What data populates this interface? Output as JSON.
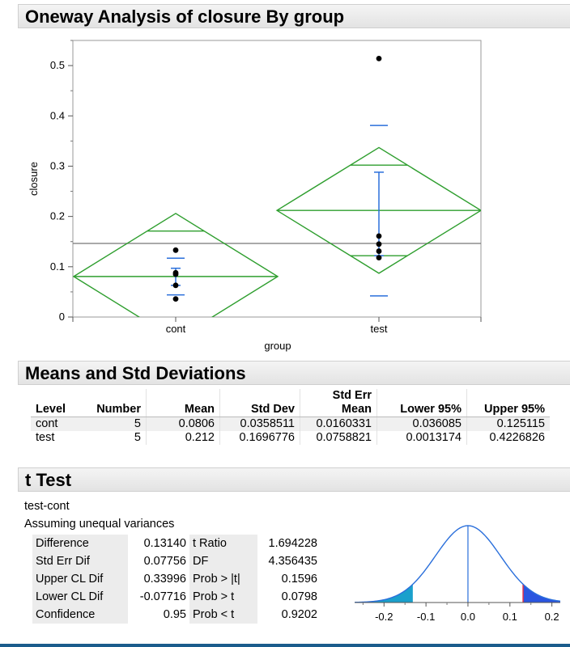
{
  "headers": {
    "oneway": "Oneway Analysis of closure By group",
    "means": "Means and Std Deviations",
    "ttest": "t Test"
  },
  "colors": {
    "diamond": "#2e9e2e",
    "errorbar": "#2a6fdb",
    "grandmean": "#777777",
    "points": "#000000"
  },
  "chart_data": {
    "type": "scatter",
    "xlabel": "group",
    "ylabel": "closure",
    "categories": [
      "cont",
      "test"
    ],
    "ylim": [
      0,
      0.55
    ],
    "yticks": [
      "0",
      "0.1",
      "0.2",
      "0.3",
      "0.4",
      "0.5"
    ],
    "grand_mean": 0.1463,
    "points": {
      "cont": [
        0.133,
        0.088,
        0.085,
        0.063,
        0.036
      ],
      "test": [
        0.514,
        0.161,
        0.145,
        0.131,
        0.118
      ]
    },
    "means": {
      "cont": 0.0806,
      "test": 0.212
    },
    "diamond_top": {
      "cont": 0.206,
      "test": 0.337
    },
    "diamond_bottom": {
      "cont": -0.045,
      "test": 0.087
    },
    "overlap_marks": {
      "cont": [
        0.171,
        -0.01
      ],
      "test": [
        0.302,
        0.122
      ]
    },
    "std_dev_bars": {
      "cont": [
        0.044,
        0.117
      ],
      "test": [
        0.042,
        0.381
      ]
    },
    "ci_bars": {
      "cont": [
        0.063,
        0.097
      ],
      "test": [
        0.122,
        0.288
      ]
    }
  },
  "means_table": {
    "columns": [
      "Level",
      "Number",
      "Mean",
      "Std Dev",
      "Std Err",
      "Mean",
      "Lower 95%",
      "Upper 95%"
    ],
    "rows": [
      [
        "cont",
        "5",
        "0.0806",
        "0.0358511",
        "0.0160331",
        "0.036085",
        "0.125115"
      ],
      [
        "test",
        "5",
        "0.212",
        "0.1696776",
        "0.0758821",
        "0.0013174",
        "0.4226826"
      ]
    ]
  },
  "ttest": {
    "comparison": "test-cont",
    "assumption": "Assuming unequal variances",
    "rows": [
      {
        "label": "Difference",
        "value": "0.13140",
        "label2": "t Ratio",
        "value2": "1.694228"
      },
      {
        "label": "Std Err Dif",
        "value": "0.07756",
        "label2": "DF",
        "value2": "4.356435"
      },
      {
        "label": "Upper CL Dif",
        "value": "0.33996",
        "label2": "Prob > |t|",
        "value2": "0.1596"
      },
      {
        "label": "Lower CL Dif",
        "value": "-0.07716",
        "label2": "Prob > t",
        "value2": "0.0798"
      },
      {
        "label": "Confidence",
        "value": "0.95",
        "label2": "Prob < t",
        "value2": "0.9202"
      }
    ],
    "dist_chart": {
      "xticks": [
        "-0.2",
        "-0.1",
        "0.0",
        "0.1",
        "0.2"
      ],
      "xlim": [
        -0.27,
        0.22
      ],
      "observed_diff": 0.1314,
      "se": 0.07756,
      "left_shade_color": "#1aa0cc",
      "right_shade_color": "#2a55e0",
      "curve_color": "#2a6fdb"
    }
  }
}
